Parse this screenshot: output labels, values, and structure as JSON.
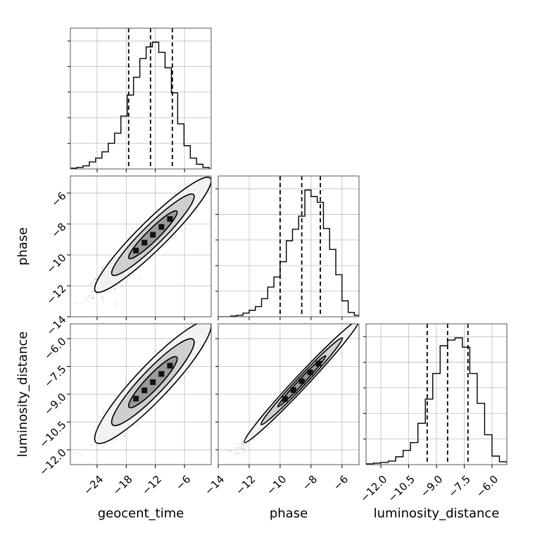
{
  "chart_data": {
    "type": "corner",
    "parameters": [
      "geocent_time",
      "phase",
      "luminosity_distance"
    ],
    "axis_labels": {
      "x": [
        "geocent_time",
        "phase",
        "luminosity_distance"
      ],
      "y": [
        "phase",
        "luminosity_distance"
      ]
    },
    "ranges": {
      "geocent_time": [
        -29.5,
        -0.5
      ],
      "phase": [
        -14.0,
        -4.9
      ],
      "luminosity_distance": [
        -12.8,
        -5.2
      ]
    },
    "ticks": {
      "geocent_time": [
        -24,
        -18,
        -12,
        -6
      ],
      "phase": [
        -14,
        -12,
        -10,
        -8,
        -6
      ],
      "luminosity_distance": [
        -12.0,
        -10.5,
        -9.0,
        -7.5,
        -6.0
      ]
    },
    "tick_labels": {
      "geocent_time": [
        "−24",
        "−18",
        "−12",
        "−6"
      ],
      "phase": [
        "−14",
        "−12",
        "−10",
        "−8",
        "−6"
      ],
      "phase_y": [
        "−6",
        "−8",
        "−10",
        "−12",
        "−14"
      ],
      "luminosity_distance": [
        "−12.0",
        "−10.5",
        "−9.0",
        "−7.5",
        "−6.0"
      ],
      "luminosity_distance_y": [
        "−6.0",
        "−7.5",
        "−9.0",
        "−10.5",
        "−12.0"
      ]
    },
    "quantiles": {
      "geocent_time": [
        -17.5,
        -13.0,
        -8.5
      ],
      "phase": [
        -10.0,
        -8.6,
        -7.4
      ],
      "luminosity_distance": [
        -9.5,
        -8.4,
        -7.3
      ]
    },
    "histograms": {
      "geocent_time": {
        "edges": [
          -29.5,
          -28.2,
          -26.9,
          -25.6,
          -24.3,
          -23.0,
          -21.7,
          -20.4,
          -19.1,
          -17.8,
          -16.5,
          -15.2,
          -13.9,
          -12.6,
          -11.3,
          -10.0,
          -8.7,
          -7.4,
          -6.1,
          -4.8,
          -3.5,
          -2.2,
          -0.9
        ],
        "counts": [
          1,
          2,
          4,
          9,
          14,
          22,
          33,
          46,
          68,
          95,
          118,
          142,
          157,
          163,
          150,
          130,
          98,
          58,
          30,
          14,
          6,
          2
        ]
      },
      "phase": {
        "edges": [
          -14.0,
          -13.6,
          -13.2,
          -12.8,
          -12.4,
          -12.0,
          -11.6,
          -11.2,
          -10.8,
          -10.4,
          -10.0,
          -9.6,
          -9.2,
          -8.8,
          -8.4,
          -8.0,
          -7.6,
          -7.2,
          -6.8,
          -6.4,
          -6.0,
          -5.6,
          -5.2,
          -4.9
        ],
        "counts": [
          0,
          0,
          1,
          2,
          5,
          9,
          14,
          25,
          41,
          55,
          76,
          105,
          121,
          139,
          175,
          166,
          158,
          122,
          93,
          58,
          22,
          6,
          2
        ]
      },
      "luminosity_distance": {
        "edges": [
          -12.8,
          -12.4,
          -12.0,
          -11.6,
          -11.2,
          -10.8,
          -10.4,
          -10.0,
          -9.6,
          -9.2,
          -8.8,
          -8.4,
          -8.0,
          -7.6,
          -7.2,
          -6.8,
          -6.4,
          -6.0,
          -5.6,
          -5.2
        ],
        "counts": [
          1,
          2,
          3,
          5,
          11,
          20,
          31,
          58,
          92,
          128,
          167,
          175,
          178,
          165,
          128,
          86,
          42,
          12,
          4
        ]
      }
    },
    "pairs": [
      {
        "x": "geocent_time",
        "y": "phase",
        "mean": [
          -12.5,
          -8.7
        ],
        "sd": [
          5.0,
          1.55
        ],
        "rho": 0.94,
        "peak": [
          -13.0,
          -8.5
        ]
      },
      {
        "x": "geocent_time",
        "y": "luminosity_distance",
        "mean": [
          -12.5,
          -8.35
        ],
        "sd": [
          5.0,
          1.38
        ],
        "rho": 0.92,
        "peak": [
          -13.5,
          -8.2
        ]
      },
      {
        "x": "phase",
        "y": "luminosity_distance",
        "mean": [
          -8.6,
          -8.3
        ],
        "sd": [
          1.55,
          1.38
        ],
        "rho": 0.988,
        "peak": [
          -8.5,
          -8.2
        ]
      }
    ],
    "contour_levels": [
      1.0,
      1.5,
      2.0
    ],
    "grid": true
  }
}
